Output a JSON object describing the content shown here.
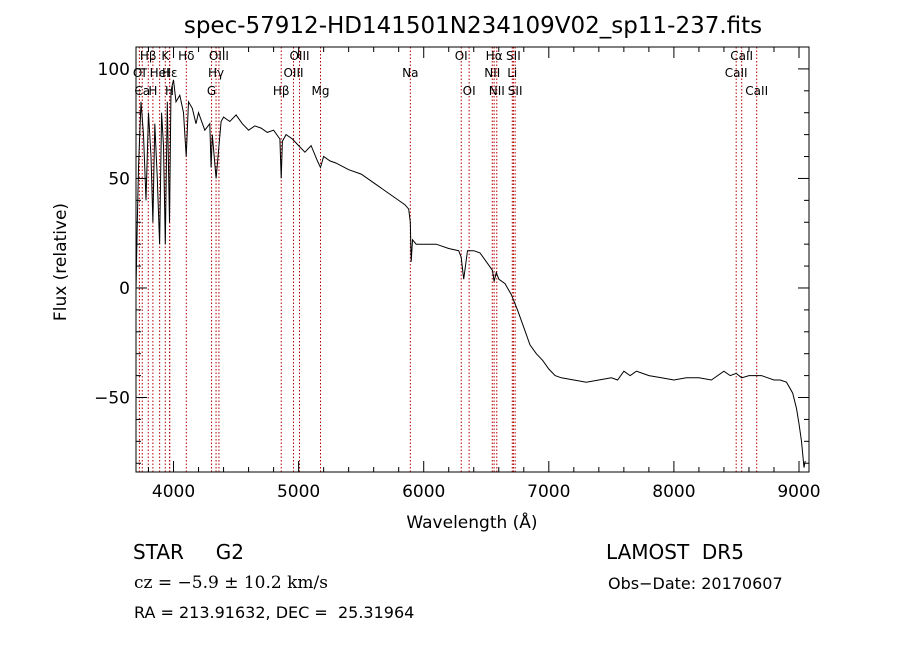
{
  "chart_data": {
    "type": "line",
    "title": "spec-57912-HD141501N234109V02_sp11-237.fits",
    "xlabel": "Wavelength (Å)",
    "ylabel": "Flux (relative)",
    "xlim": [
      3700,
      9080
    ],
    "ylim": [
      -84,
      110
    ],
    "xticks": [
      4000,
      5000,
      6000,
      7000,
      8000,
      9000
    ],
    "yticks": [
      -50,
      0,
      50,
      100
    ],
    "grid": false,
    "series": [
      {
        "x": [
          3700,
          3710,
          3720,
          3740,
          3760,
          3780,
          3800,
          3820,
          3835,
          3850,
          3870,
          3889,
          3905,
          3920,
          3934,
          3950,
          3968,
          3980,
          4000,
          4020,
          4050,
          4080,
          4101,
          4120,
          4150,
          4180,
          4200,
          4250,
          4290,
          4300,
          4310,
          4340,
          4380,
          4400,
          4450,
          4500,
          4550,
          4600,
          4650,
          4700,
          4750,
          4800,
          4850,
          4861,
          4870,
          4900,
          4950,
          5000,
          5050,
          5100,
          5150,
          5175,
          5200,
          5250,
          5300,
          5400,
          5500,
          5600,
          5700,
          5800,
          5850,
          5880,
          5893,
          5900,
          5910,
          5940,
          6000,
          6100,
          6200,
          6280,
          6300,
          6320,
          6350,
          6400,
          6450,
          6500,
          6550,
          6563,
          6580,
          6600,
          6650,
          6700,
          6750,
          6800,
          6850,
          6900,
          6950,
          7000,
          7050,
          7100,
          7200,
          7300,
          7400,
          7500,
          7550,
          7600,
          7650,
          7700,
          7750,
          7800,
          7900,
          8000,
          8100,
          8200,
          8300,
          8400,
          8450,
          8498,
          8542,
          8600,
          8662,
          8700,
          8750,
          8800,
          8850,
          8900,
          8950,
          8980,
          9000,
          9020,
          9040,
          9050
        ],
        "y": [
          -1,
          30,
          55,
          85,
          70,
          40,
          80,
          60,
          30,
          75,
          50,
          20,
          80,
          65,
          20,
          85,
          30,
          90,
          95,
          85,
          88,
          80,
          60,
          85,
          82,
          75,
          80,
          72,
          75,
          55,
          70,
          50,
          76,
          78,
          76,
          79,
          75,
          72,
          74,
          73,
          71,
          72,
          68,
          50,
          67,
          70,
          68,
          65,
          62,
          65,
          58,
          55,
          60,
          58,
          57,
          54,
          52,
          48,
          44,
          40,
          38,
          36,
          30,
          12,
          22,
          20,
          20,
          20,
          18,
          17,
          14,
          4,
          17,
          17,
          16,
          12,
          8,
          3,
          7,
          4,
          2,
          -3,
          -10,
          -18,
          -26,
          -30,
          -33,
          -37,
          -40,
          -41,
          -42,
          -43,
          -42,
          -41,
          -42,
          -38,
          -40,
          -38,
          -39,
          -40,
          -41,
          -42,
          -41,
          -41,
          -42,
          -38,
          -40,
          -39,
          -41,
          -40,
          -40,
          -40,
          -41,
          -42,
          -42,
          -43,
          -48,
          -55,
          -62,
          -70,
          -82,
          -79
        ]
      }
    ],
    "line_markers": [
      {
        "label": "Hβ",
        "w": 3798,
        "row": 0
      },
      {
        "label": "K",
        "w": 3934,
        "row": 0
      },
      {
        "label": "Hδ",
        "w": 4102,
        "row": 0
      },
      {
        "label": "OIII",
        "w": 4363,
        "row": 0
      },
      {
        "label": "OIII",
        "w": 5007,
        "row": 0
      },
      {
        "label": "OI",
        "w": 6300,
        "row": 0
      },
      {
        "label": "Hα",
        "w": 6563,
        "row": 0
      },
      {
        "label": "SII",
        "w": 6717,
        "row": 0
      },
      {
        "label": "CaII",
        "w": 8542,
        "row": 0
      },
      {
        "label": "OI",
        "w": 3727,
        "row": 1
      },
      {
        "label": "HeI",
        "w": 3889,
        "row": 1
      },
      {
        "label": "Hε",
        "w": 3970,
        "row": 1
      },
      {
        "label": "Hγ",
        "w": 4340,
        "row": 1
      },
      {
        "label": "OIII",
        "w": 4959,
        "row": 1
      },
      {
        "label": "Na",
        "w": 5893,
        "row": 1
      },
      {
        "label": "NII",
        "w": 6548,
        "row": 1
      },
      {
        "label": "Li",
        "w": 6708,
        "row": 1
      },
      {
        "label": "CaII",
        "w": 8498,
        "row": 1
      },
      {
        "label": "Ca",
        "w": 3750,
        "row": 2
      },
      {
        "label": "H",
        "w": 3835,
        "row": 2
      },
      {
        "label": "H",
        "w": 3968,
        "row": 2
      },
      {
        "label": "G",
        "w": 4304,
        "row": 2
      },
      {
        "label": "Hβ",
        "w": 4861,
        "row": 2
      },
      {
        "label": "Mg",
        "w": 5175,
        "row": 2
      },
      {
        "label": "OI",
        "w": 6363,
        "row": 2
      },
      {
        "label": "NII",
        "w": 6584,
        "row": 2
      },
      {
        "label": "SII",
        "w": 6731,
        "row": 2
      },
      {
        "label": "CaII",
        "w": 8662,
        "row": 2
      }
    ]
  },
  "footer": {
    "object_class": "STAR     G2",
    "survey": "LAMOST  DR5",
    "redshift": "cz = −5.9 ± 10.2 km/s",
    "obs_date": "Obs−Date: 20170607",
    "coordinates": "RA = 213.91632, DEC =  25.31964"
  }
}
